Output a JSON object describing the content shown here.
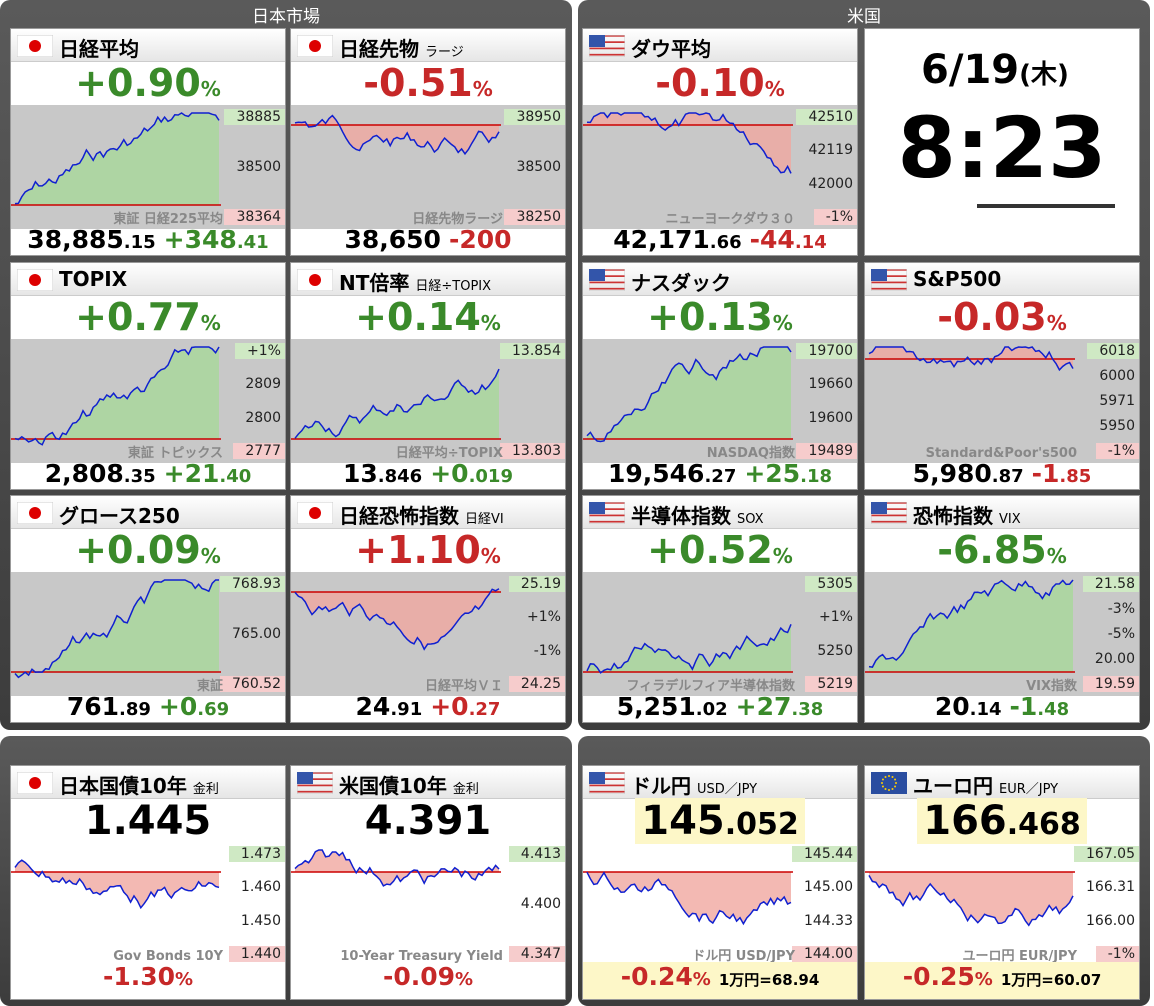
{
  "sections": [
    {
      "title": "日本市場"
    },
    {
      "title": "米国"
    }
  ],
  "clock": {
    "date": "6/19",
    "weekday": "(木)",
    "time": "8:23"
  },
  "cards": [
    {
      "flag": "jp",
      "name": "日経平均",
      "change": "+0.90",
      "pct": "%",
      "tone": "green",
      "price_int": "38,885",
      "price_dec": ".15",
      "diff_int": "+348",
      "diff_dec": ".41",
      "diff_tone": "green",
      "labels": [
        "38885",
        "38500",
        "38364"
      ],
      "watermark": "東証 日経225平均"
    },
    {
      "flag": "jp",
      "name": "日経先物",
      "sub": "ラージ",
      "change": "-0.51",
      "pct": "%",
      "tone": "red",
      "price_int": "38,650",
      "diff_int": "-200",
      "diff_tone": "red",
      "labels": [
        "38950",
        "38500",
        "38250"
      ],
      "watermark": "日経先物ラージ"
    },
    {
      "flag": "us",
      "name": "ダウ平均",
      "change": "-0.10",
      "pct": "%",
      "tone": "red",
      "price_int": "42,171",
      "price_dec": ".66",
      "diff_int": "-44",
      "diff_dec": ".14",
      "diff_tone": "red",
      "labels": [
        "42510",
        "42119",
        "42000",
        "-1%"
      ],
      "watermark": "ニューヨークダウ３０"
    },
    {
      "flag": "jp",
      "name": "TOPIX",
      "change": "+0.77",
      "pct": "%",
      "tone": "green",
      "price_int": "2,808",
      "price_dec": ".35",
      "diff_int": "+21",
      "diff_dec": ".40",
      "diff_tone": "green",
      "labels": [
        "+1%",
        "2809",
        "2800",
        "2777"
      ],
      "watermark": "東証 トピックス"
    },
    {
      "flag": "jp",
      "name": "NT倍率",
      "sub": "日経÷TOPIX",
      "change": "+0.14",
      "pct": "%",
      "tone": "green",
      "price_int": "13",
      "price_dec": ".846",
      "diff_int": "+0",
      "diff_dec": ".019",
      "diff_tone": "green",
      "labels": [
        "13.854",
        "13.803"
      ],
      "watermark": "日経平均÷TOPIX"
    },
    {
      "flag": "us",
      "name": "ナスダック",
      "change": "+0.13",
      "pct": "%",
      "tone": "green",
      "price_int": "19,546",
      "price_dec": ".27",
      "diff_int": "+25",
      "diff_dec": ".18",
      "diff_tone": "green",
      "labels": [
        "19700",
        "19660",
        "19600",
        "19489"
      ],
      "watermark": "NASDAQ指数"
    },
    {
      "flag": "us",
      "name": "S&P500",
      "change": "-0.03",
      "pct": "%",
      "tone": "red",
      "price_int": "5,980",
      "price_dec": ".87",
      "diff_int": "-1",
      "diff_dec": ".85",
      "diff_tone": "red",
      "labels": [
        "6018",
        "6000",
        "5971",
        "5950",
        "-1%"
      ],
      "watermark": "Standard&Poor's500"
    },
    {
      "flag": "jp",
      "name": "グロース250",
      "change": "+0.09",
      "pct": "%",
      "tone": "green",
      "price_int": "761",
      "price_dec": ".89",
      "diff_int": "+0",
      "diff_dec": ".69",
      "diff_tone": "green",
      "labels": [
        "768.93",
        "765.00",
        "760.52"
      ],
      "watermark": "東証"
    },
    {
      "flag": "jp",
      "name": "日経恐怖指数",
      "sub": "日経VI",
      "change": "+1.10",
      "pct": "%",
      "tone": "red",
      "price_int": "24",
      "price_dec": ".91",
      "diff_int": "+0",
      "diff_dec": ".27",
      "diff_tone": "red",
      "labels": [
        "25.19",
        "+1%",
        "-1%",
        "24.25"
      ],
      "watermark": "日経平均ＶＩ"
    },
    {
      "flag": "us",
      "name": "半導体指数",
      "sub": "SOX",
      "change": "+0.52",
      "pct": "%",
      "tone": "green",
      "price_int": "5,251",
      "price_dec": ".02",
      "diff_int": "+27",
      "diff_dec": ".38",
      "diff_tone": "green",
      "labels": [
        "5305",
        "+1%",
        "5250",
        "5219"
      ],
      "watermark": "フィラデルフィア半導体指数"
    },
    {
      "flag": "us",
      "name": "恐怖指数",
      "sub": "VIX",
      "change": "-6.85",
      "pct": "%",
      "tone": "green",
      "price_int": "20",
      "price_dec": ".14",
      "diff_int": "-1",
      "diff_dec": ".48",
      "diff_tone": "green",
      "labels": [
        "21.58",
        "-3%",
        "-5%",
        "20.00",
        "19.59"
      ],
      "watermark": "VIX指数"
    },
    {
      "flag": "jp",
      "name": "日本国債10年",
      "sub": "金利",
      "value_int": "1.445",
      "change": "-1.30",
      "pct": "%",
      "tone": "red",
      "labels": [
        "1.473",
        "1.460",
        "1.450",
        "1.440"
      ],
      "watermark": "Gov Bonds 10Y"
    },
    {
      "flag": "us",
      "name": "米国債10年",
      "sub": "金利",
      "value_int": "4.391",
      "change": "-0.09",
      "pct": "%",
      "tone": "red",
      "labels": [
        "4.413",
        "4.400",
        "4.347"
      ],
      "watermark": "10-Year Treasury Yield"
    },
    {
      "flag": "us",
      "name": "ドル円",
      "sub": "USD／JPY",
      "value_int": "145",
      "value_dec": ".052",
      "highlight": true,
      "change": "-0.24",
      "pct": "%",
      "tone": "red",
      "note": "1万円=68.94",
      "labels": [
        "145.44",
        "145.00",
        "144.33",
        "144.00"
      ],
      "watermark": "ドル円 USD/JPY"
    },
    {
      "flag": "eu",
      "name": "ユーロ円",
      "sub": "EUR／JPY",
      "value_int": "166",
      "value_dec": ".468",
      "highlight": true,
      "change": "-0.25",
      "pct": "%",
      "tone": "red",
      "note": "1万円=60.07",
      "labels": [
        "167.05",
        "166.31",
        "166.00",
        "-1%"
      ],
      "watermark": "ユーロ円 EUR/JPY"
    }
  ]
}
